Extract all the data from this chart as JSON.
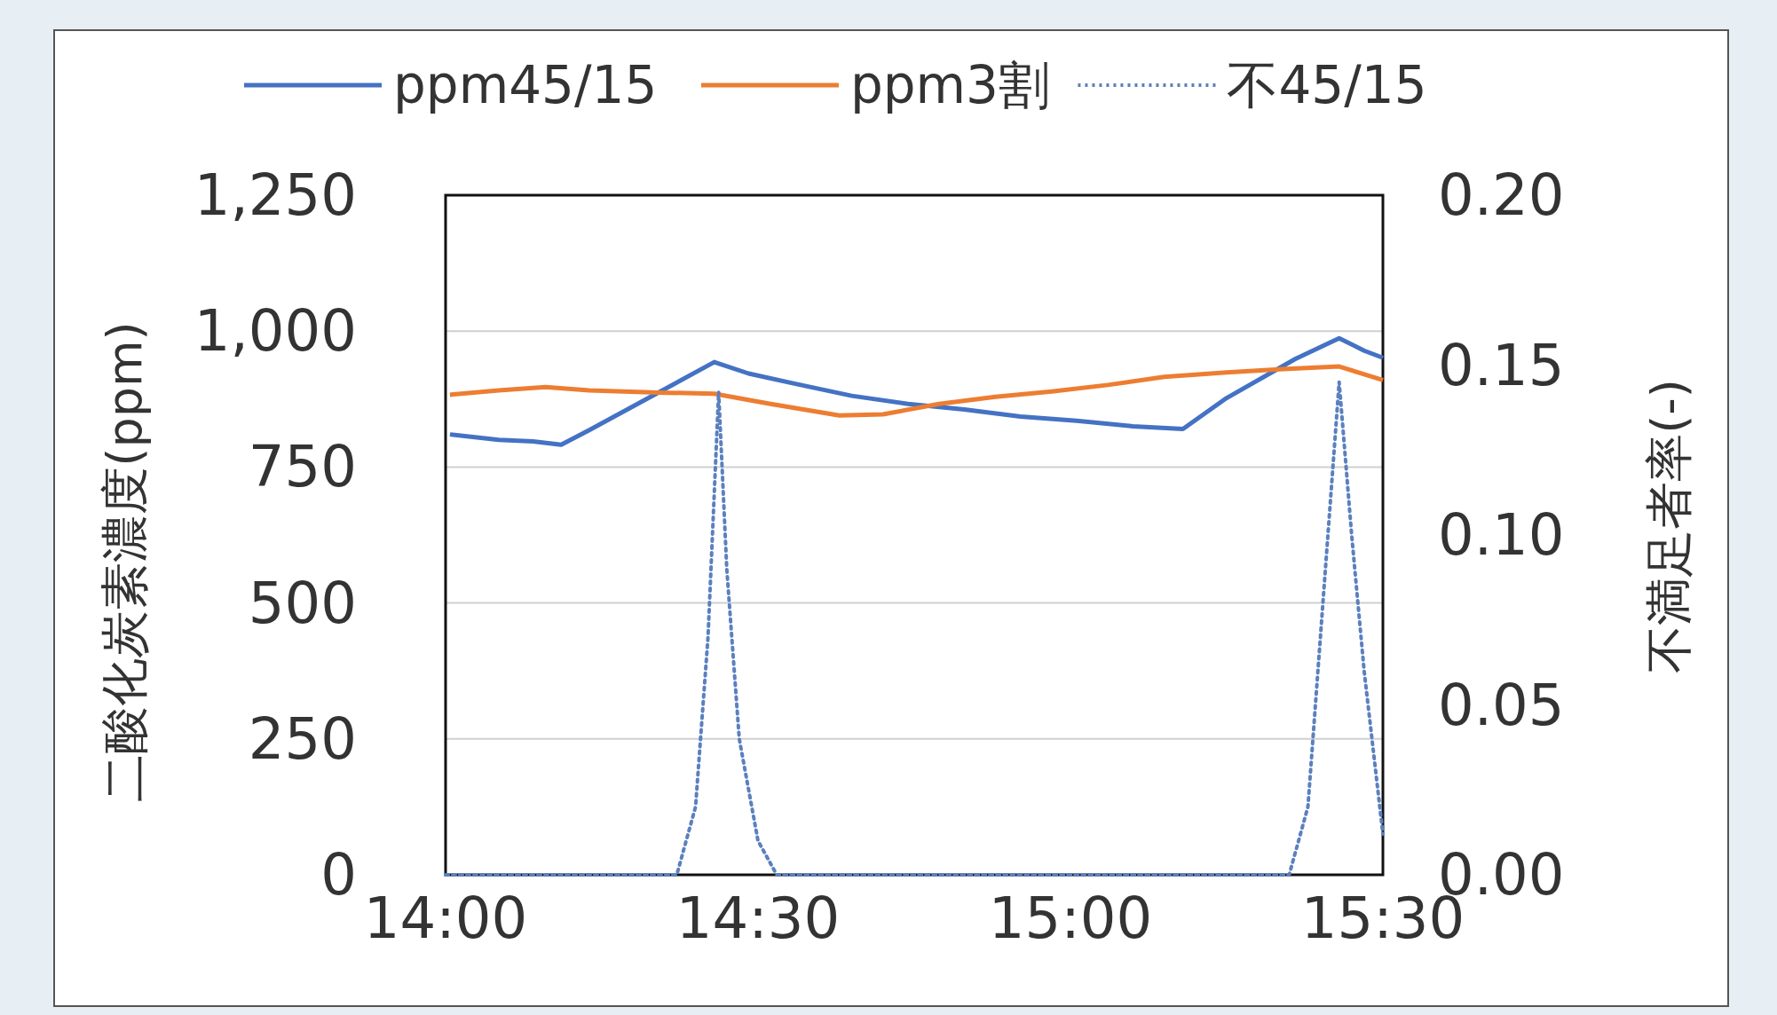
{
  "chart_data": {
    "type": "line",
    "ylabel": "二酸化炭素濃度(ppm)",
    "y2label": "不満足者率(-)",
    "xlim": [
      14,
      15.5
    ],
    "xticks": [
      {
        "value": 14,
        "label": "14:00"
      },
      {
        "value": 14.5,
        "label": "14:30"
      },
      {
        "value": 15,
        "label": "15:00"
      },
      {
        "value": 15.5,
        "label": "15:30"
      }
    ],
    "ylim": [
      0,
      1250
    ],
    "yticks": [
      {
        "value": 0,
        "label": "0"
      },
      {
        "value": 250,
        "label": "250"
      },
      {
        "value": 500,
        "label": "500"
      },
      {
        "value": 750,
        "label": "750"
      },
      {
        "value": 1000,
        "label": "1,000"
      },
      {
        "value": 1250,
        "label": "1,250"
      }
    ],
    "y2lim": [
      0,
      0.2
    ],
    "y2ticks": [
      {
        "value": 0,
        "label": "0.00"
      },
      {
        "value": 0.05,
        "label": "0.05"
      },
      {
        "value": 0.1,
        "label": "0.10"
      },
      {
        "value": 0.15,
        "label": "0.15"
      },
      {
        "value": 0.2,
        "label": "0.20"
      }
    ],
    "grid": "y",
    "legend": "top",
    "marker": "none",
    "series": [
      {
        "name": "ppm45/15",
        "color": "#4472c4",
        "line_style": "solid",
        "x": [
          14.007,
          14.085,
          14.14,
          14.185,
          14.23,
          14.43,
          14.485,
          14.56,
          14.65,
          14.74,
          14.83,
          14.92,
          15.01,
          15.1,
          15.18,
          15.25,
          15.36,
          15.43,
          15.47,
          15.5
        ],
        "values": [
          810,
          800,
          797,
          791,
          818,
          943,
          922,
          903,
          881,
          866,
          856,
          843,
          835,
          825,
          820,
          877,
          949,
          987,
          964,
          951
        ]
      },
      {
        "name": "ppm3割",
        "color": "#ed7d31",
        "line_style": "solid",
        "x": [
          14.007,
          14.085,
          14.16,
          14.23,
          14.34,
          14.43,
          14.52,
          14.63,
          14.7,
          14.79,
          14.88,
          14.97,
          15.06,
          15.15,
          15.25,
          15.34,
          15.43,
          15.5
        ],
        "values": [
          883,
          891,
          897,
          891,
          887,
          885,
          866,
          845,
          847,
          866,
          879,
          889,
          901,
          916,
          924,
          930,
          935,
          910
        ]
      },
      {
        "name": "不45/15",
        "color": "#5b80be",
        "line_style": "dotted",
        "axis": "y2",
        "x": [
          14,
          14.1,
          14.2,
          14.3,
          14.37,
          14.4,
          14.42,
          14.437,
          14.45,
          14.47,
          14.5,
          14.53,
          14.6,
          14.8,
          15,
          15.2,
          15.35,
          15.38,
          15.4,
          15.43,
          15.45,
          15.47,
          15.5
        ],
        "values": [
          0,
          0,
          0,
          0,
          0,
          0.02,
          0.07,
          0.142,
          0.09,
          0.04,
          0.01,
          0,
          0,
          0,
          0,
          0,
          0,
          0.02,
          0.07,
          0.145,
          0.1,
          0.06,
          0.012
        ]
      }
    ]
  }
}
